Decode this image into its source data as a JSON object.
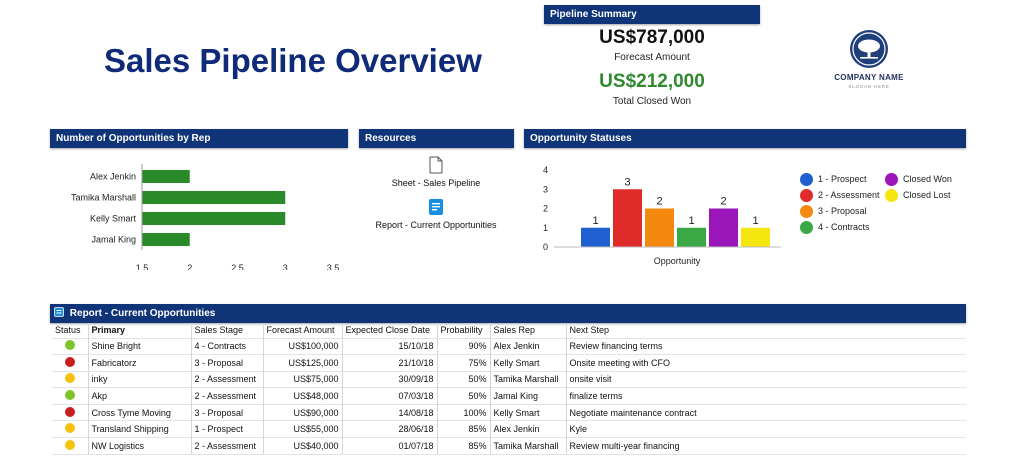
{
  "page": {
    "title": "Sales Pipeline Overview"
  },
  "summary": {
    "header": "Pipeline Summary",
    "forecast_amount": "US$787,000",
    "forecast_label": "Forecast Amount",
    "closed_won_amount": "US$212,000",
    "closed_won_label": "Total Closed Won"
  },
  "logo": {
    "company": "COMPANY NAME",
    "slogan": "SLOGAN HERE",
    "icon": "tree-icon"
  },
  "opps_by_rep": {
    "header": "Number of Opportunities by Rep"
  },
  "resources": {
    "header": "Resources",
    "items": [
      {
        "label": "Sheet - Sales Pipeline",
        "icon": "sheet-icon"
      },
      {
        "label": "Report - Current Opportunities",
        "icon": "report-icon"
      }
    ]
  },
  "statuses": {
    "header": "Opportunity Statuses"
  },
  "chart_data": [
    {
      "type": "bar",
      "orientation": "horizontal",
      "categories": [
        "Alex Jenkin",
        "Tamika Marshall",
        "Kelly Smart",
        "Jamal King"
      ],
      "values": [
        2,
        3,
        3,
        2
      ],
      "xlim": [
        1.5,
        3.5
      ],
      "xticks": [
        1.5,
        2,
        2.5,
        3,
        3.5
      ],
      "color": "#2a8a2a"
    },
    {
      "type": "bar",
      "categories": [
        "1 - Prospect",
        "2 - Assessment",
        "3 - Proposal",
        "4 - Contracts",
        "Closed Won",
        "Closed Lost"
      ],
      "values": [
        1,
        3,
        2,
        1,
        2,
        1
      ],
      "colors": [
        "#1f5fd0",
        "#e02b2b",
        "#f5890f",
        "#3aa845",
        "#9a16b8",
        "#f5e610"
      ],
      "xlabel": "Opportunity",
      "ylim": [
        0,
        4
      ],
      "yticks": [
        0,
        1,
        2,
        3,
        4
      ],
      "legend": "right"
    }
  ],
  "report": {
    "header": "Report - Current Opportunities",
    "columns": [
      "Status",
      "Primary",
      "Sales Stage",
      "Forecast Amount",
      "Expected Close Date",
      "Probability",
      "Sales Rep",
      "Next Step"
    ],
    "rows": [
      {
        "status_color": "#7cc42a",
        "primary": "Shine Bright",
        "stage": "4 - Contracts",
        "amount": "US$100,000",
        "close": "15/10/18",
        "prob": "90%",
        "rep": "Alex Jenkin",
        "next": "Review financing terms"
      },
      {
        "status_color": "#c81e1e",
        "primary": "Fabricatorz",
        "stage": "3 - Proposal",
        "amount": "US$125,000",
        "close": "21/10/18",
        "prob": "75%",
        "rep": "Kelly Smart",
        "next": "Onsite meeting with CFO"
      },
      {
        "status_color": "#f4c20d",
        "primary": "inky",
        "stage": "2 - Assessment",
        "amount": "US$75,000",
        "close": "30/09/18",
        "prob": "50%",
        "rep": "Tamika Marshall",
        "next": "onsite visit"
      },
      {
        "status_color": "#7cc42a",
        "primary": "Akp",
        "stage": "2 - Assessment",
        "amount": "US$48,000",
        "close": "07/03/18",
        "prob": "50%",
        "rep": "Jamal King",
        "next": "finalize terms"
      },
      {
        "status_color": "#c81e1e",
        "primary": "Cross Tyme Moving",
        "stage": "3 - Proposal",
        "amount": "US$90,000",
        "close": "14/08/18",
        "prob": "100%",
        "rep": "Kelly Smart",
        "next": "Negotiate maintenance contract"
      },
      {
        "status_color": "#f4c20d",
        "primary": "Transland Shipping",
        "stage": "1 - Prospect",
        "amount": "US$55,000",
        "close": "28/06/18",
        "prob": "85%",
        "rep": "Alex Jenkin",
        "next": "Kyle"
      },
      {
        "status_color": "#f4c20d",
        "primary": "NW Logistics",
        "stage": "2 - Assessment",
        "amount": "US$40,000",
        "close": "01/07/18",
        "prob": "85%",
        "rep": "Tamika Marshall",
        "next": "Review multi-year financing"
      }
    ]
  }
}
